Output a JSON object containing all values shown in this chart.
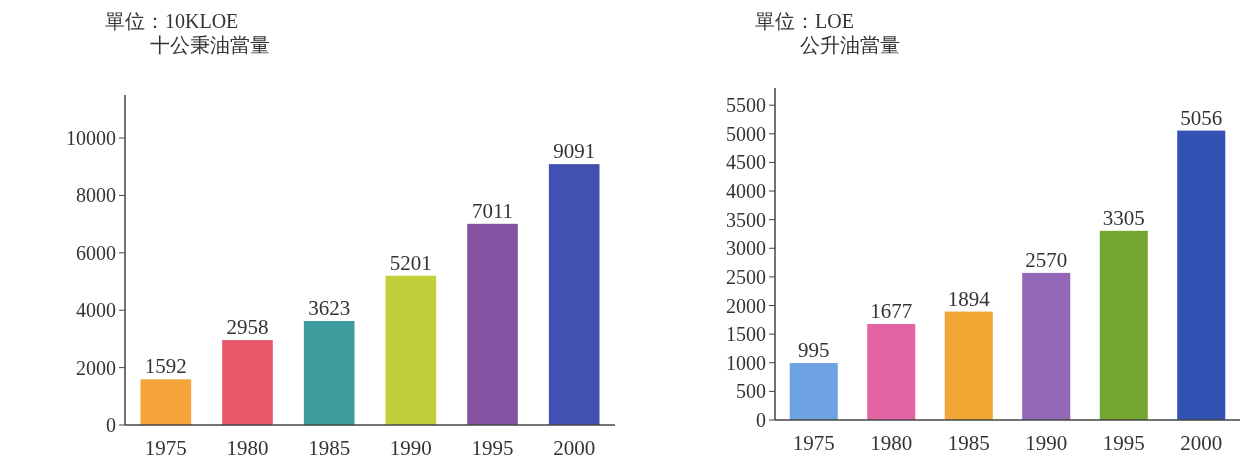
{
  "chart_data": [
    {
      "type": "bar",
      "ylabel": "單位：10KLOE\n十公秉油當量",
      "categories": [
        "1975",
        "1980",
        "1985",
        "1990",
        "1995",
        "2000"
      ],
      "values": [
        1592,
        2958,
        3623,
        5201,
        7011,
        9091
      ],
      "colors": [
        "#f4a43a",
        "#e8566a",
        "#3f9c9e",
        "#c2cf3a",
        "#8454a2",
        "#4250b2"
      ],
      "ylim": [
        0,
        11500
      ],
      "yticks": [
        0,
        2000,
        4000,
        6000,
        8000,
        10000
      ],
      "data_labels": true
    },
    {
      "type": "bar",
      "ylabel": "單位：LOE\n公升油當量",
      "categories": [
        "1975",
        "1980",
        "1985",
        "1990",
        "1995",
        "2000"
      ],
      "values": [
        995,
        1677,
        1894,
        2570,
        3305,
        5056
      ],
      "colors": [
        "#6ea2e2",
        "#e463a4",
        "#f2a634",
        "#9466b6",
        "#74a634",
        "#3452b4"
      ],
      "ylim": [
        0,
        5800
      ],
      "yticks": [
        0,
        500,
        1000,
        1500,
        2000,
        2500,
        3000,
        3500,
        4000,
        4500,
        5000,
        5500
      ],
      "data_labels": true
    }
  ]
}
